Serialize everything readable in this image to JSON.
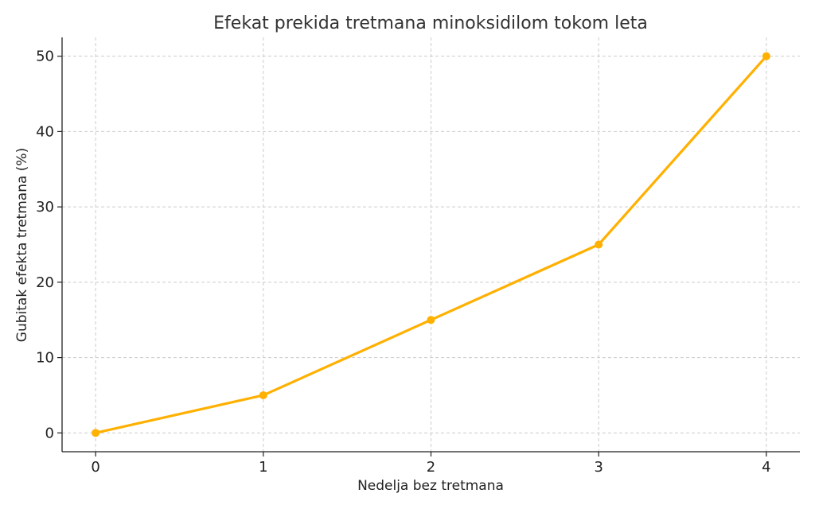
{
  "chart_data": {
    "type": "line",
    "title": "Efekat prekida tretmana minoksidilom tokom leta",
    "xlabel": "Nedelja bez tretmana",
    "ylabel": "Gubitak efekta tretmana (%)",
    "x": [
      0,
      1,
      2,
      3,
      4
    ],
    "series": [
      {
        "values": [
          0,
          5,
          15,
          25,
          50
        ],
        "color": "#FFB000"
      }
    ],
    "x_ticks": [
      0,
      1,
      2,
      3,
      4
    ],
    "y_ticks": [
      0,
      10,
      20,
      30,
      40,
      50
    ],
    "xlim": [
      -0.2,
      4.2
    ],
    "ylim": [
      -2.5,
      52.5
    ],
    "grid": true,
    "marker": "circle"
  }
}
